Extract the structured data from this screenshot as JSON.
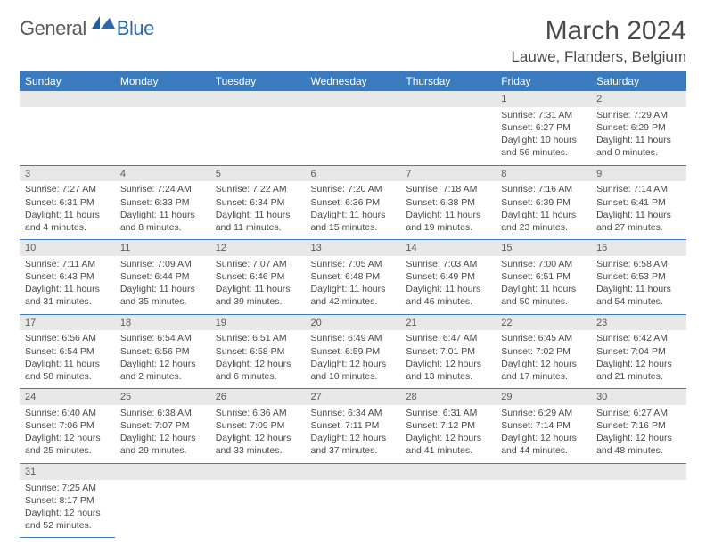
{
  "logo": {
    "part1": "General",
    "part2": "Blue"
  },
  "title": "March 2024",
  "location": "Lauwe, Flanders, Belgium",
  "colors": {
    "header_bg": "#3a7bbf",
    "header_fg": "#ffffff",
    "daynum_bg": "#e8e8e8",
    "rule": "#3a7bbf",
    "logo_accent": "#2f6aa8",
    "text": "#4a4a4a"
  },
  "days_of_week": [
    "Sunday",
    "Monday",
    "Tuesday",
    "Wednesday",
    "Thursday",
    "Friday",
    "Saturday"
  ],
  "weeks": [
    [
      null,
      null,
      null,
      null,
      null,
      {
        "n": "1",
        "sr": "Sunrise: 7:31 AM",
        "ss": "Sunset: 6:27 PM",
        "d1": "Daylight: 10 hours",
        "d2": "and 56 minutes."
      },
      {
        "n": "2",
        "sr": "Sunrise: 7:29 AM",
        "ss": "Sunset: 6:29 PM",
        "d1": "Daylight: 11 hours",
        "d2": "and 0 minutes."
      }
    ],
    [
      {
        "n": "3",
        "sr": "Sunrise: 7:27 AM",
        "ss": "Sunset: 6:31 PM",
        "d1": "Daylight: 11 hours",
        "d2": "and 4 minutes."
      },
      {
        "n": "4",
        "sr": "Sunrise: 7:24 AM",
        "ss": "Sunset: 6:33 PM",
        "d1": "Daylight: 11 hours",
        "d2": "and 8 minutes."
      },
      {
        "n": "5",
        "sr": "Sunrise: 7:22 AM",
        "ss": "Sunset: 6:34 PM",
        "d1": "Daylight: 11 hours",
        "d2": "and 11 minutes."
      },
      {
        "n": "6",
        "sr": "Sunrise: 7:20 AM",
        "ss": "Sunset: 6:36 PM",
        "d1": "Daylight: 11 hours",
        "d2": "and 15 minutes."
      },
      {
        "n": "7",
        "sr": "Sunrise: 7:18 AM",
        "ss": "Sunset: 6:38 PM",
        "d1": "Daylight: 11 hours",
        "d2": "and 19 minutes."
      },
      {
        "n": "8",
        "sr": "Sunrise: 7:16 AM",
        "ss": "Sunset: 6:39 PM",
        "d1": "Daylight: 11 hours",
        "d2": "and 23 minutes."
      },
      {
        "n": "9",
        "sr": "Sunrise: 7:14 AM",
        "ss": "Sunset: 6:41 PM",
        "d1": "Daylight: 11 hours",
        "d2": "and 27 minutes."
      }
    ],
    [
      {
        "n": "10",
        "sr": "Sunrise: 7:11 AM",
        "ss": "Sunset: 6:43 PM",
        "d1": "Daylight: 11 hours",
        "d2": "and 31 minutes."
      },
      {
        "n": "11",
        "sr": "Sunrise: 7:09 AM",
        "ss": "Sunset: 6:44 PM",
        "d1": "Daylight: 11 hours",
        "d2": "and 35 minutes."
      },
      {
        "n": "12",
        "sr": "Sunrise: 7:07 AM",
        "ss": "Sunset: 6:46 PM",
        "d1": "Daylight: 11 hours",
        "d2": "and 39 minutes."
      },
      {
        "n": "13",
        "sr": "Sunrise: 7:05 AM",
        "ss": "Sunset: 6:48 PM",
        "d1": "Daylight: 11 hours",
        "d2": "and 42 minutes."
      },
      {
        "n": "14",
        "sr": "Sunrise: 7:03 AM",
        "ss": "Sunset: 6:49 PM",
        "d1": "Daylight: 11 hours",
        "d2": "and 46 minutes."
      },
      {
        "n": "15",
        "sr": "Sunrise: 7:00 AM",
        "ss": "Sunset: 6:51 PM",
        "d1": "Daylight: 11 hours",
        "d2": "and 50 minutes."
      },
      {
        "n": "16",
        "sr": "Sunrise: 6:58 AM",
        "ss": "Sunset: 6:53 PM",
        "d1": "Daylight: 11 hours",
        "d2": "and 54 minutes."
      }
    ],
    [
      {
        "n": "17",
        "sr": "Sunrise: 6:56 AM",
        "ss": "Sunset: 6:54 PM",
        "d1": "Daylight: 11 hours",
        "d2": "and 58 minutes."
      },
      {
        "n": "18",
        "sr": "Sunrise: 6:54 AM",
        "ss": "Sunset: 6:56 PM",
        "d1": "Daylight: 12 hours",
        "d2": "and 2 minutes."
      },
      {
        "n": "19",
        "sr": "Sunrise: 6:51 AM",
        "ss": "Sunset: 6:58 PM",
        "d1": "Daylight: 12 hours",
        "d2": "and 6 minutes."
      },
      {
        "n": "20",
        "sr": "Sunrise: 6:49 AM",
        "ss": "Sunset: 6:59 PM",
        "d1": "Daylight: 12 hours",
        "d2": "and 10 minutes."
      },
      {
        "n": "21",
        "sr": "Sunrise: 6:47 AM",
        "ss": "Sunset: 7:01 PM",
        "d1": "Daylight: 12 hours",
        "d2": "and 13 minutes."
      },
      {
        "n": "22",
        "sr": "Sunrise: 6:45 AM",
        "ss": "Sunset: 7:02 PM",
        "d1": "Daylight: 12 hours",
        "d2": "and 17 minutes."
      },
      {
        "n": "23",
        "sr": "Sunrise: 6:42 AM",
        "ss": "Sunset: 7:04 PM",
        "d1": "Daylight: 12 hours",
        "d2": "and 21 minutes."
      }
    ],
    [
      {
        "n": "24",
        "sr": "Sunrise: 6:40 AM",
        "ss": "Sunset: 7:06 PM",
        "d1": "Daylight: 12 hours",
        "d2": "and 25 minutes."
      },
      {
        "n": "25",
        "sr": "Sunrise: 6:38 AM",
        "ss": "Sunset: 7:07 PM",
        "d1": "Daylight: 12 hours",
        "d2": "and 29 minutes."
      },
      {
        "n": "26",
        "sr": "Sunrise: 6:36 AM",
        "ss": "Sunset: 7:09 PM",
        "d1": "Daylight: 12 hours",
        "d2": "and 33 minutes."
      },
      {
        "n": "27",
        "sr": "Sunrise: 6:34 AM",
        "ss": "Sunset: 7:11 PM",
        "d1": "Daylight: 12 hours",
        "d2": "and 37 minutes."
      },
      {
        "n": "28",
        "sr": "Sunrise: 6:31 AM",
        "ss": "Sunset: 7:12 PM",
        "d1": "Daylight: 12 hours",
        "d2": "and 41 minutes."
      },
      {
        "n": "29",
        "sr": "Sunrise: 6:29 AM",
        "ss": "Sunset: 7:14 PM",
        "d1": "Daylight: 12 hours",
        "d2": "and 44 minutes."
      },
      {
        "n": "30",
        "sr": "Sunrise: 6:27 AM",
        "ss": "Sunset: 7:16 PM",
        "d1": "Daylight: 12 hours",
        "d2": "and 48 minutes."
      }
    ],
    [
      {
        "n": "31",
        "sr": "Sunrise: 7:25 AM",
        "ss": "Sunset: 8:17 PM",
        "d1": "Daylight: 12 hours",
        "d2": "and 52 minutes."
      },
      null,
      null,
      null,
      null,
      null,
      null
    ]
  ]
}
